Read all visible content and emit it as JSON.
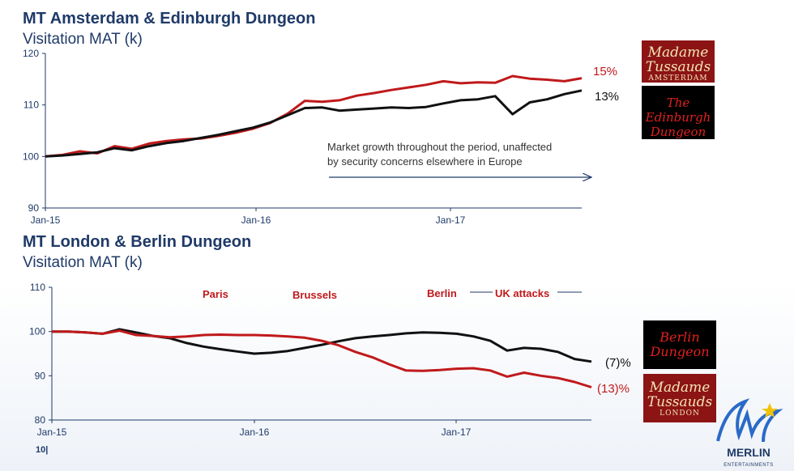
{
  "charts": {
    "top": {
      "title": "MT Amsterdam & Edinburgh Dungeon",
      "subtitle": "Visitation MAT (k)",
      "annotation_line1": "Market growth throughout the period, unaffected",
      "annotation_line2": "by security concerns elsewhere in Europe",
      "end_labels": [
        "15%",
        "13%"
      ]
    },
    "bottom": {
      "title": "MT London & Berlin Dungeon",
      "subtitle": "Visitation MAT (k)",
      "events": [
        "Paris",
        "Brussels",
        "Berlin",
        "UK attacks"
      ],
      "end_labels": [
        "(7)%",
        "(13)%"
      ]
    }
  },
  "logos": {
    "mt_amsterdam": {
      "name": "Madame Tussauds",
      "city": "AMSTERDAM"
    },
    "edinburgh_dungeon": {
      "name": "The Edinburgh Dungeon"
    },
    "berlin_dungeon": {
      "name": "Berlin Dungeon"
    },
    "mt_london": {
      "name": "Madame Tussauds",
      "city": "LONDON"
    },
    "merlin": {
      "name": "MERLIN",
      "sub": "ENTERTAINMENTS"
    }
  },
  "page_number": "10|",
  "colors": {
    "red": "#c0191b",
    "black": "#111111",
    "navy": "#1f3a68"
  },
  "chart_data": [
    {
      "type": "line",
      "title": "MT Amsterdam & Edinburgh Dungeon",
      "ylabel": "Visitation MAT (k)",
      "ylim": [
        90,
        120
      ],
      "yticks": [
        90,
        100,
        110,
        120
      ],
      "xticks": [
        "Jan-15",
        "Jan-16",
        "Jan-17"
      ],
      "xlim": [
        0,
        31
      ],
      "series": [
        {
          "name": "Madame Tussauds Amsterdam",
          "color": "#c0191b",
          "end_label": "15%",
          "x": [
            0,
            1,
            2,
            3,
            4,
            5,
            6,
            7,
            8,
            9,
            10,
            11,
            12,
            13,
            14,
            15,
            16,
            17,
            18,
            19,
            20,
            21,
            22,
            23,
            24,
            25,
            26,
            27,
            28,
            29,
            30,
            31
          ],
          "values": [
            100,
            100.3,
            101,
            100.6,
            102,
            101.5,
            102.5,
            103,
            103.3,
            103.5,
            104,
            104.6,
            105.4,
            106.5,
            108.3,
            110.8,
            110.6,
            110.9,
            111.8,
            112.3,
            112.9,
            113.4,
            113.9,
            114.6,
            114.2,
            114.4,
            114.3,
            115.6,
            115.1,
            114.9,
            114.6,
            115.2
          ]
        },
        {
          "name": "Edinburgh Dungeon",
          "color": "#111111",
          "end_label": "13%",
          "x": [
            0,
            1,
            2,
            3,
            4,
            5,
            6,
            7,
            8,
            9,
            10,
            11,
            12,
            13,
            14,
            15,
            16,
            17,
            18,
            19,
            20,
            21,
            22,
            23,
            24,
            25,
            26,
            27,
            28,
            29,
            30,
            31
          ],
          "values": [
            100,
            100.2,
            100.5,
            100.8,
            101.6,
            101.2,
            102,
            102.6,
            103,
            103.6,
            104.2,
            104.9,
            105.6,
            106.6,
            108,
            109.4,
            109.5,
            108.9,
            109.1,
            109.3,
            109.5,
            109.4,
            109.6,
            110.3,
            110.9,
            111.1,
            111.7,
            108.2,
            110.5,
            111.1,
            112.1,
            112.8
          ]
        }
      ]
    },
    {
      "type": "line",
      "title": "MT London & Berlin Dungeon",
      "ylabel": "Visitation MAT (k)",
      "ylim": [
        80,
        110
      ],
      "yticks": [
        80,
        90,
        100,
        110
      ],
      "xticks": [
        "Jan-15",
        "Jan-16",
        "Jan-17"
      ],
      "xlim": [
        0,
        32
      ],
      "series": [
        {
          "name": "Berlin Dungeon",
          "color": "#111111",
          "end_label": "(7)%",
          "x": [
            0,
            1,
            2,
            3,
            4,
            5,
            6,
            7,
            8,
            9,
            10,
            11,
            12,
            13,
            14,
            15,
            16,
            17,
            18,
            19,
            20,
            21,
            22,
            23,
            24,
            25,
            26,
            27,
            28,
            29,
            30,
            31,
            32
          ],
          "values": [
            100,
            100,
            99.8,
            99.5,
            100.5,
            99.8,
            99,
            98.5,
            97.4,
            96.6,
            96,
            95.5,
            95,
            95.2,
            95.6,
            96.3,
            97,
            97.8,
            98.5,
            98.9,
            99.2,
            99.6,
            99.8,
            99.7,
            99.5,
            98.9,
            97.9,
            95.7,
            96.3,
            96.1,
            95.4,
            93.8,
            93.2
          ]
        },
        {
          "name": "Madame Tussauds London",
          "color": "#c0191b",
          "end_label": "(13)%",
          "x": [
            0,
            1,
            2,
            3,
            4,
            5,
            6,
            7,
            8,
            9,
            10,
            11,
            12,
            13,
            14,
            15,
            16,
            17,
            18,
            19,
            20,
            21,
            22,
            23,
            24,
            25,
            26,
            27,
            28,
            29,
            30,
            31,
            32
          ],
          "values": [
            100,
            100,
            99.8,
            99.5,
            100.2,
            99.2,
            99,
            98.7,
            98.9,
            99.2,
            99.3,
            99.2,
            99.2,
            99.1,
            98.9,
            98.6,
            97.9,
            96.9,
            95.4,
            94.2,
            92.6,
            91.2,
            91.1,
            91.3,
            91.6,
            91.7,
            91.2,
            89.8,
            90.7,
            90,
            89.5,
            88.6,
            87.4
          ]
        }
      ],
      "events": [
        {
          "label": "Paris"
        },
        {
          "label": "Brussels"
        },
        {
          "label": "Berlin"
        },
        {
          "label": "UK attacks"
        }
      ]
    }
  ]
}
